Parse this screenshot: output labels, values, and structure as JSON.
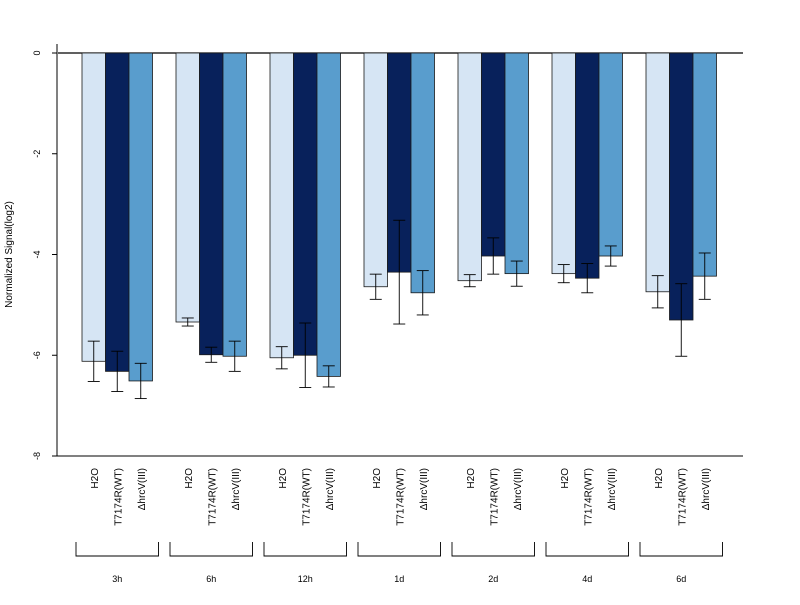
{
  "chart_data": {
    "type": "bar",
    "ylabel": "Normalized Signal(log2)",
    "ylim": [
      -8,
      0
    ],
    "yticks": [
      "0",
      "-2",
      "-4",
      "-6",
      "-8"
    ],
    "groups": [
      "3h",
      "6h",
      "12h",
      "1d",
      "2d",
      "4d",
      "6d"
    ],
    "series": [
      {
        "name": "H2O",
        "color": "#d6e5f4",
        "values": [
          -6.12,
          -5.34,
          -6.05,
          -4.64,
          -4.52,
          -4.38,
          -4.74
        ],
        "errors": [
          0.4,
          0.08,
          0.22,
          0.25,
          0.12,
          0.18,
          0.32
        ]
      },
      {
        "name": "T7174R(WT)",
        "color": "#08215b",
        "values": [
          -6.32,
          -5.99,
          -6.0,
          -4.35,
          -4.03,
          -4.47,
          -5.3
        ],
        "errors": [
          0.4,
          0.15,
          0.64,
          1.03,
          0.36,
          0.29,
          0.72
        ]
      },
      {
        "name": "ΔhrcV(III)",
        "color": "#599dcd",
        "values": [
          -6.51,
          -6.02,
          -6.42,
          -4.76,
          -4.38,
          -4.03,
          -4.43
        ],
        "errors": [
          0.35,
          0.3,
          0.21,
          0.44,
          0.25,
          0.2,
          0.46
        ]
      }
    ]
  }
}
